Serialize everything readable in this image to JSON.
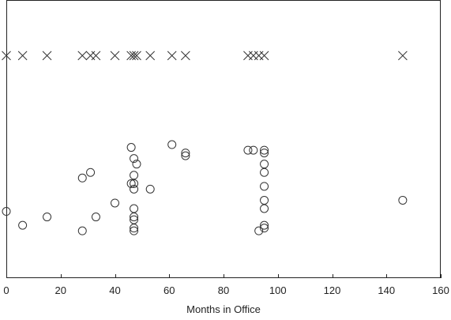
{
  "chart_data": {
    "type": "scatter",
    "xlabel": "Months in Office",
    "ylabel": "",
    "xlim": [
      0,
      160
    ],
    "ylim": [
      0,
      1
    ],
    "xticks": [
      0,
      20,
      40,
      60,
      80,
      100,
      120,
      140,
      160
    ],
    "grid": false,
    "series": [
      {
        "marker": "x",
        "color": "#333333",
        "points": [
          [
            0,
            0.8
          ],
          [
            6,
            0.8
          ],
          [
            15,
            0.8
          ],
          [
            28,
            0.8
          ],
          [
            31,
            0.8
          ],
          [
            33,
            0.8
          ],
          [
            40,
            0.8
          ],
          [
            46,
            0.8
          ],
          [
            47,
            0.8
          ],
          [
            48,
            0.8
          ],
          [
            53,
            0.8
          ],
          [
            61,
            0.8
          ],
          [
            66,
            0.8
          ],
          [
            89,
            0.8
          ],
          [
            91,
            0.8
          ],
          [
            93,
            0.8
          ],
          [
            95,
            0.8
          ],
          [
            146,
            0.8
          ]
        ]
      },
      {
        "marker": "circle",
        "color": "#333333",
        "points": [
          [
            0,
            0.24
          ],
          [
            6,
            0.19
          ],
          [
            15,
            0.22
          ],
          [
            28,
            0.36
          ],
          [
            28,
            0.17
          ],
          [
            31,
            0.38
          ],
          [
            33,
            0.22
          ],
          [
            40,
            0.27
          ],
          [
            46,
            0.47
          ],
          [
            46,
            0.34
          ],
          [
            47,
            0.43
          ],
          [
            47,
            0.37
          ],
          [
            47,
            0.34
          ],
          [
            47,
            0.32
          ],
          [
            47,
            0.25
          ],
          [
            47,
            0.22
          ],
          [
            47,
            0.21
          ],
          [
            47,
            0.18
          ],
          [
            47,
            0.17
          ],
          [
            48,
            0.41
          ],
          [
            53,
            0.32
          ],
          [
            61,
            0.48
          ],
          [
            66,
            0.45
          ],
          [
            66,
            0.44
          ],
          [
            89,
            0.46
          ],
          [
            91,
            0.46
          ],
          [
            93,
            0.17
          ],
          [
            95,
            0.46
          ],
          [
            95,
            0.45
          ],
          [
            95,
            0.41
          ],
          [
            95,
            0.38
          ],
          [
            95,
            0.33
          ],
          [
            95,
            0.28
          ],
          [
            95,
            0.25
          ],
          [
            95,
            0.19
          ],
          [
            95,
            0.18
          ],
          [
            146,
            0.28
          ]
        ]
      }
    ]
  }
}
